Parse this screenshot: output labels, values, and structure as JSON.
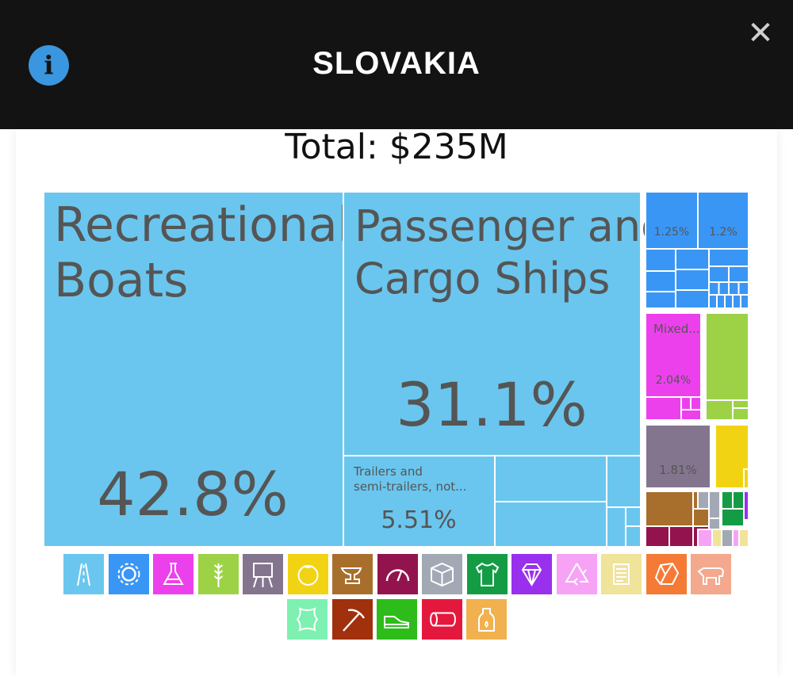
{
  "header": {
    "title": "SLOVAKIA",
    "info_label": "i",
    "close_label": "✕",
    "background": "#131313"
  },
  "total_label": "Total: $235M",
  "chart_data": {
    "type": "treemap",
    "title": "SLOVAKIA",
    "subtitle": "Total: $235M",
    "tiles": [
      {
        "name": "Recreational Boats",
        "label": "42.8%",
        "share": 42.8,
        "color": "#6ac6ee"
      },
      {
        "name": "Passenger and Cargo Ships",
        "label": "31.1%",
        "share": 31.1,
        "color": "#6ac6ee"
      },
      {
        "name": "Trailers and semi-trailers, not...",
        "label": "5.51%",
        "share": 5.51,
        "color": "#6ac6ee"
      },
      {
        "name": "",
        "label": "1.25%",
        "share": 1.25,
        "color": "#3a96f5"
      },
      {
        "name": "",
        "label": "1.2%",
        "share": 1.2,
        "color": "#3a96f5"
      },
      {
        "name": "Mixed...",
        "label": "2.04%",
        "share": 2.04,
        "color": "#ed40ed"
      },
      {
        "name": "",
        "label": "1.81%",
        "share": 1.81,
        "color": "#84758f"
      }
    ],
    "sector_colors": {
      "transportation": "#6ac6ee",
      "machines": "#3a96f5",
      "chemicals": "#ed40ed",
      "vegetable": "#9dd247",
      "instruments": "#84758f",
      "foodstuffs": "#f2d314",
      "metals": "#a86f2c",
      "plastics": "#93134e",
      "misc": "#a3a8b5",
      "textiles": "#149c45",
      "stone": "#9930ee"
    }
  },
  "legend": [
    {
      "icon": "road-icon",
      "color": "#6ac6ee"
    },
    {
      "icon": "gear-icon",
      "color": "#3a96f5"
    },
    {
      "icon": "flask-icon",
      "color": "#ed40ed"
    },
    {
      "icon": "wheat-icon",
      "color": "#9dd247"
    },
    {
      "icon": "easel-icon",
      "color": "#84758f"
    },
    {
      "icon": "tomato-icon",
      "color": "#f2d314"
    },
    {
      "icon": "anvil-icon",
      "color": "#a86f2c"
    },
    {
      "icon": "gauge-icon",
      "color": "#93134e"
    },
    {
      "icon": "box-icon",
      "color": "#a3a8b5"
    },
    {
      "icon": "tshirt-icon",
      "color": "#149c45"
    },
    {
      "icon": "diamond-icon",
      "color": "#9930ee"
    },
    {
      "icon": "recycle-icon",
      "color": "#f6a3f6"
    },
    {
      "icon": "scroll-icon",
      "color": "#f0e39a"
    },
    {
      "icon": "ore-icon",
      "color": "#f47a35"
    },
    {
      "icon": "cow-icon",
      "color": "#f4a88d"
    },
    {
      "icon": "leather-icon",
      "color": "#7ef0b1"
    },
    {
      "icon": "pickaxe-icon",
      "color": "#a1300c"
    },
    {
      "icon": "shoe-icon",
      "color": "#2dbc1a"
    },
    {
      "icon": "log-icon",
      "color": "#e4183d"
    },
    {
      "icon": "bottle-icon",
      "color": "#f0b14e"
    }
  ]
}
